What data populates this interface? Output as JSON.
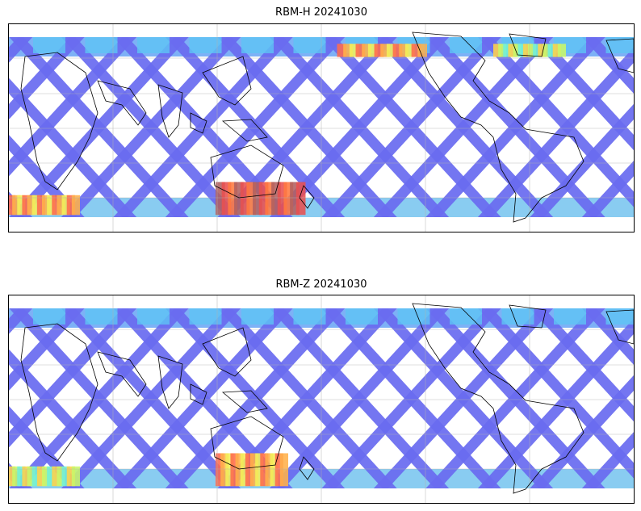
{
  "panels": [
    {
      "title": "RBM-H 20241030",
      "colormap": "jet",
      "swath_color": "#6a6cf0",
      "hot_regions": [
        {
          "lon": [
            -180,
            -140
          ],
          "lat": [
            -65,
            -50
          ],
          "level": "high"
        },
        {
          "lon": [
            -60,
            -10
          ],
          "lat": [
            -65,
            -40
          ],
          "level": "very-high"
        },
        {
          "lon": [
            10,
            60
          ],
          "lat": [
            55,
            65
          ],
          "level": "high"
        },
        {
          "lon": [
            100,
            140
          ],
          "lat": [
            55,
            65
          ],
          "level": "medium"
        }
      ]
    },
    {
      "title": "RBM-Z 20241030",
      "colormap": "jet",
      "swath_color": "#6a6cf0",
      "hot_regions": [
        {
          "lon": [
            -180,
            -140
          ],
          "lat": [
            -65,
            -50
          ],
          "level": "medium"
        },
        {
          "lon": [
            -60,
            -20
          ],
          "lat": [
            -65,
            -40
          ],
          "level": "high"
        }
      ]
    }
  ],
  "map": {
    "projection": "PlateCarree",
    "central_longitude": 180,
    "lat_range": [
      -70,
      75
    ],
    "gridlines": true,
    "coastline_color": "#000000",
    "land_fill": "none"
  }
}
